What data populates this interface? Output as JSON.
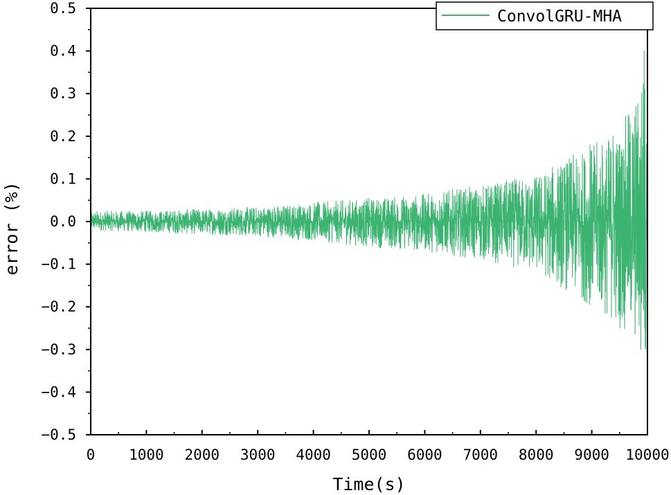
{
  "chart_data": {
    "type": "line",
    "title": "",
    "xlabel": "Time(s)",
    "ylabel": "error (%)",
    "xlim": [
      0,
      10000
    ],
    "ylim": [
      -0.5,
      0.5
    ],
    "x_ticks": [
      "0",
      "1000",
      "2000",
      "3000",
      "4000",
      "5000",
      "6000",
      "7000",
      "8000",
      "9000",
      "10000"
    ],
    "y_ticks": [
      "0.5",
      "0.4",
      "0.3",
      "0.2",
      "0.1",
      "0.0",
      "−0.1",
      "−0.2",
      "−0.3",
      "−0.4",
      "−0.5"
    ],
    "grid": false,
    "legend_position": "top-right",
    "series": [
      {
        "name": "ConvolGRU-MHA",
        "color": "#3cb371",
        "description_of_shape": "zero-mean error signal whose amplitude grows from about ±0.02 near t=0 to about ±0.3-0.4 near t=10000",
        "envelope": {
          "x": [
            0,
            1000,
            2000,
            3000,
            4000,
            5000,
            6000,
            7000,
            8000,
            9000,
            9500,
            9800,
            9950,
            10000
          ],
          "max": [
            0.025,
            0.025,
            0.03,
            0.035,
            0.045,
            0.055,
            0.065,
            0.085,
            0.11,
            0.18,
            0.22,
            0.3,
            0.4,
            0.19
          ],
          "min": [
            -0.02,
            -0.025,
            -0.03,
            -0.035,
            -0.045,
            -0.06,
            -0.07,
            -0.09,
            -0.12,
            -0.2,
            -0.25,
            -0.3,
            -0.3,
            -0.3
          ]
        },
        "peaks": [
          {
            "x": 9940,
            "y": 0.4
          },
          {
            "x": 9880,
            "y": -0.3
          },
          {
            "x": 9970,
            "y": -0.3
          },
          {
            "x": 9380,
            "y": 0.2
          },
          {
            "x": 8970,
            "y": 0.18
          }
        ]
      }
    ]
  }
}
